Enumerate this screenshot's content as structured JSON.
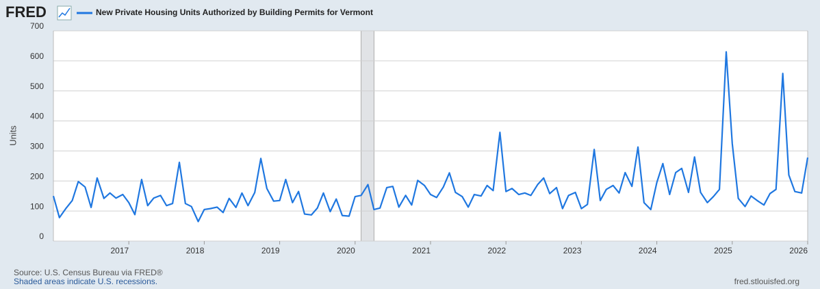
{
  "logo": "FRED",
  "source": "Source: U.S. Census Bureau via FRED®",
  "note": "Shaded areas indicate U.S. recessions.",
  "site": "fred.stlouisfed.org",
  "chart_data": {
    "type": "line",
    "y_label": "Units",
    "xlim": [
      2016,
      2026
    ],
    "xticks": [
      2017,
      2018,
      2019,
      2020,
      2021,
      2022,
      2023,
      2024,
      2025,
      2026
    ],
    "ylim": [
      0,
      700
    ],
    "yticks": [
      0,
      100,
      200,
      300,
      400,
      500,
      600,
      700
    ],
    "grid": true,
    "recessions": [
      [
        2020.08,
        2020.25
      ]
    ],
    "x": [
      2016,
      2016.08,
      2016.17,
      2016.25,
      2016.33,
      2016.42,
      2016.5,
      2016.58,
      2016.67,
      2016.75,
      2016.83,
      2016.92,
      2017,
      2017.08,
      2017.17,
      2017.25,
      2017.33,
      2017.42,
      2017.5,
      2017.58,
      2017.67,
      2017.75,
      2017.83,
      2017.92,
      2018,
      2018.08,
      2018.17,
      2018.25,
      2018.33,
      2018.42,
      2018.5,
      2018.58,
      2018.67,
      2018.75,
      2018.83,
      2018.92,
      2019,
      2019.08,
      2019.17,
      2019.25,
      2019.33,
      2019.42,
      2019.5,
      2019.58,
      2019.67,
      2019.75,
      2019.83,
      2019.92,
      2020,
      2020.08,
      2020.17,
      2020.25,
      2020.33,
      2020.42,
      2020.5,
      2020.58,
      2020.67,
      2020.75,
      2020.83,
      2020.92,
      2021,
      2021.08,
      2021.17,
      2021.25,
      2021.33,
      2021.42,
      2021.5,
      2021.58,
      2021.67,
      2021.75,
      2021.83,
      2021.92,
      2022,
      2022.08,
      2022.17,
      2022.25,
      2022.33,
      2022.42,
      2022.5,
      2022.58,
      2022.67,
      2022.75,
      2022.83,
      2022.92,
      2023,
      2023.08,
      2023.17,
      2023.25,
      2023.33,
      2023.42,
      2023.5,
      2023.58,
      2023.67,
      2023.75,
      2023.83,
      2023.92,
      2024,
      2024.08,
      2024.17,
      2024.25,
      2024.33,
      2024.42,
      2024.5,
      2024.58,
      2024.67,
      2024.75,
      2024.83,
      2024.92,
      2025,
      2025.08,
      2025.17,
      2025.25,
      2025.33,
      2025.42,
      2025.5,
      2025.58,
      2025.67,
      2025.75,
      2025.83,
      2025.92,
      2026
    ],
    "series": [
      {
        "name": "New Private Housing Units Authorized by Building Permits for Vermont",
        "color": "#1f77e0",
        "values": [
          150,
          78,
          110,
          135,
          198,
          180,
          112,
          210,
          142,
          160,
          143,
          155,
          128,
          88,
          205,
          118,
          143,
          152,
          118,
          125,
          262,
          125,
          115,
          65,
          105,
          108,
          113,
          95,
          142,
          112,
          160,
          118,
          162,
          275,
          175,
          133,
          135,
          205,
          128,
          165,
          90,
          87,
          110,
          160,
          98,
          140,
          85,
          83,
          148,
          152,
          188,
          105,
          110,
          178,
          182,
          113,
          152,
          120,
          202,
          185,
          155,
          145,
          180,
          227,
          162,
          148,
          113,
          155,
          150,
          185,
          168,
          362,
          165,
          175,
          155,
          160,
          152,
          188,
          210,
          158,
          178,
          108,
          152,
          162,
          108,
          122,
          305,
          135,
          172,
          185,
          160,
          228,
          182,
          313,
          128,
          105,
          195,
          258,
          155,
          228,
          242,
          162,
          280,
          162,
          128,
          148,
          172,
          630,
          325,
          142,
          115,
          150,
          135,
          120,
          158,
          172,
          558,
          220,
          165,
          160,
          278
        ]
      }
    ]
  }
}
